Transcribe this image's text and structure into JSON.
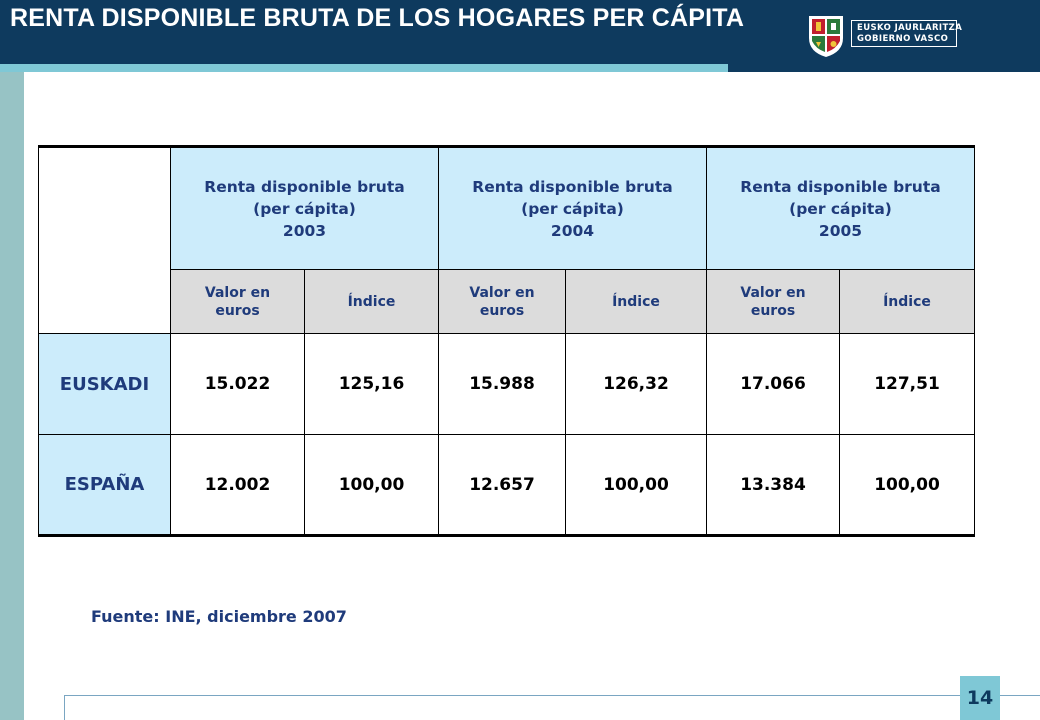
{
  "header": {
    "title": "RENTA DISPONIBLE BRUTA DE LOS HOGARES PER CÁPITA",
    "logo": {
      "icon": "coat-of-arms-icon",
      "line1": "EUSKO JAURLARITZA",
      "line2": "GOBIERNO VASCO"
    }
  },
  "table": {
    "year_headers": [
      {
        "line1": "Renta disponible bruta",
        "line2": "(per cápita)",
        "year": "2003"
      },
      {
        "line1": "Renta disponible bruta",
        "line2": "(per cápita)",
        "year": "2004"
      },
      {
        "line1": "Renta disponible bruta",
        "line2": "(per cápita)",
        "year": "2005"
      }
    ],
    "sub_headers": {
      "valor_line1": "Valor en",
      "valor_line2": "euros",
      "indice": "Índice"
    },
    "rows": [
      {
        "label": "EUSKADI",
        "values": [
          "15.022",
          "125,16",
          "15.988",
          "126,32",
          "17.066",
          "127,51"
        ]
      },
      {
        "label": "ESPAÑA",
        "values": [
          "12.002",
          "100,00",
          "12.657",
          "100,00",
          "13.384",
          "100,00"
        ]
      }
    ]
  },
  "source": "Fuente: INE, diciembre 2007",
  "page_number": "14",
  "colors": {
    "header_bg": "#0e3a5e",
    "accent": "#7fc8d6",
    "header_cell": "#ccecfb",
    "subheader_cell": "#dcdcdc",
    "text_blue": "#1f3b7b"
  }
}
